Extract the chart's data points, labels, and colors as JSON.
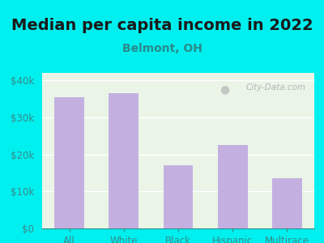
{
  "title": "Median per capita income in 2022",
  "subtitle": "Belmont, OH",
  "categories": [
    "All",
    "White",
    "Black",
    "Hispanic",
    "Multirace"
  ],
  "values": [
    35500,
    36500,
    17000,
    22500,
    13500
  ],
  "bar_color": "#c4b0e0",
  "title_fontsize": 14,
  "subtitle_fontsize": 10,
  "title_color": "#1a1a1a",
  "subtitle_color": "#2a8a8a",
  "tick_color": "#3a8a8a",
  "background_outer": "#00efef",
  "background_inner": "#eaf5e8",
  "ylim": [
    0,
    42000
  ],
  "yticks": [
    0,
    10000,
    20000,
    30000,
    40000
  ],
  "ytick_labels": [
    "$0",
    "$10k",
    "$20k",
    "$30k",
    "$40k"
  ],
  "watermark": "City-Data.com",
  "grid_color": "#ffffff"
}
